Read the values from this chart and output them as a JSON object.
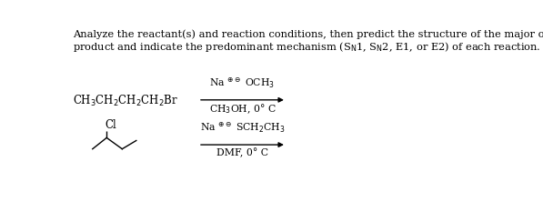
{
  "bg_color": "#ffffff",
  "text_color": "#000000",
  "title_line1": "Analyze the reactant(s) and reaction conditions, then predict the structure of the major organic",
  "title_line2_before_sub1": "product and indicate the predominant mechanism (S",
  "title_sub1": "N",
  "title_line2_after_sub1": "1, S",
  "title_sub2": "N",
  "title_line2_after_sub2": "2, E1, or E2) of each reaction.",
  "rxn1_reactant_raw": "CH$_3$CH$_2$CH$_2$CH$_2$Br",
  "rxn1_reagent_raw1": "Na $^{\\oplus\\ominus}$ OCH$_3$",
  "rxn1_reagent_raw2": "CH$_3$OH, 0° C",
  "rxn2_reagent_raw1": "Na $^{\\oplus\\ominus}$ SCH$_2$CH$_3$",
  "rxn2_reagent_raw2": "DMF, 0° C",
  "figsize": [
    5.97,
    2.22
  ],
  "dpi": 100,
  "fs_title": 8.2,
  "fs_chem": 8.5,
  "fs_reagent": 7.8
}
